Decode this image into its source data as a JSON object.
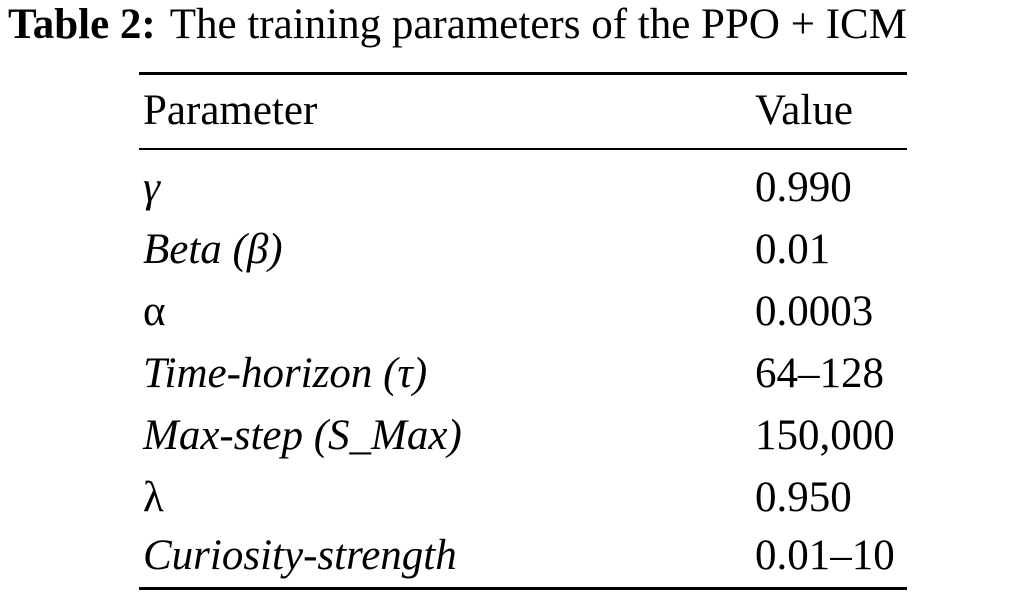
{
  "caption": {
    "label": "Table 2:",
    "text": "The training parameters of the PPO + ICM"
  },
  "table": {
    "headers": {
      "parameter": "Parameter",
      "value": "Value"
    },
    "rows": [
      {
        "parameter": "γ",
        "value": "0.990"
      },
      {
        "parameter": "Beta (β)",
        "value": "0.01"
      },
      {
        "parameter": "α",
        "value": "0.0003"
      },
      {
        "parameter": "Time-horizon (τ)",
        "value": "64–128"
      },
      {
        "parameter": "Max-step (S_Max)",
        "value": "150,000"
      },
      {
        "parameter": "λ",
        "value": "0.950"
      },
      {
        "parameter": "Curiosity-strength",
        "value": "0.01–10"
      }
    ]
  }
}
